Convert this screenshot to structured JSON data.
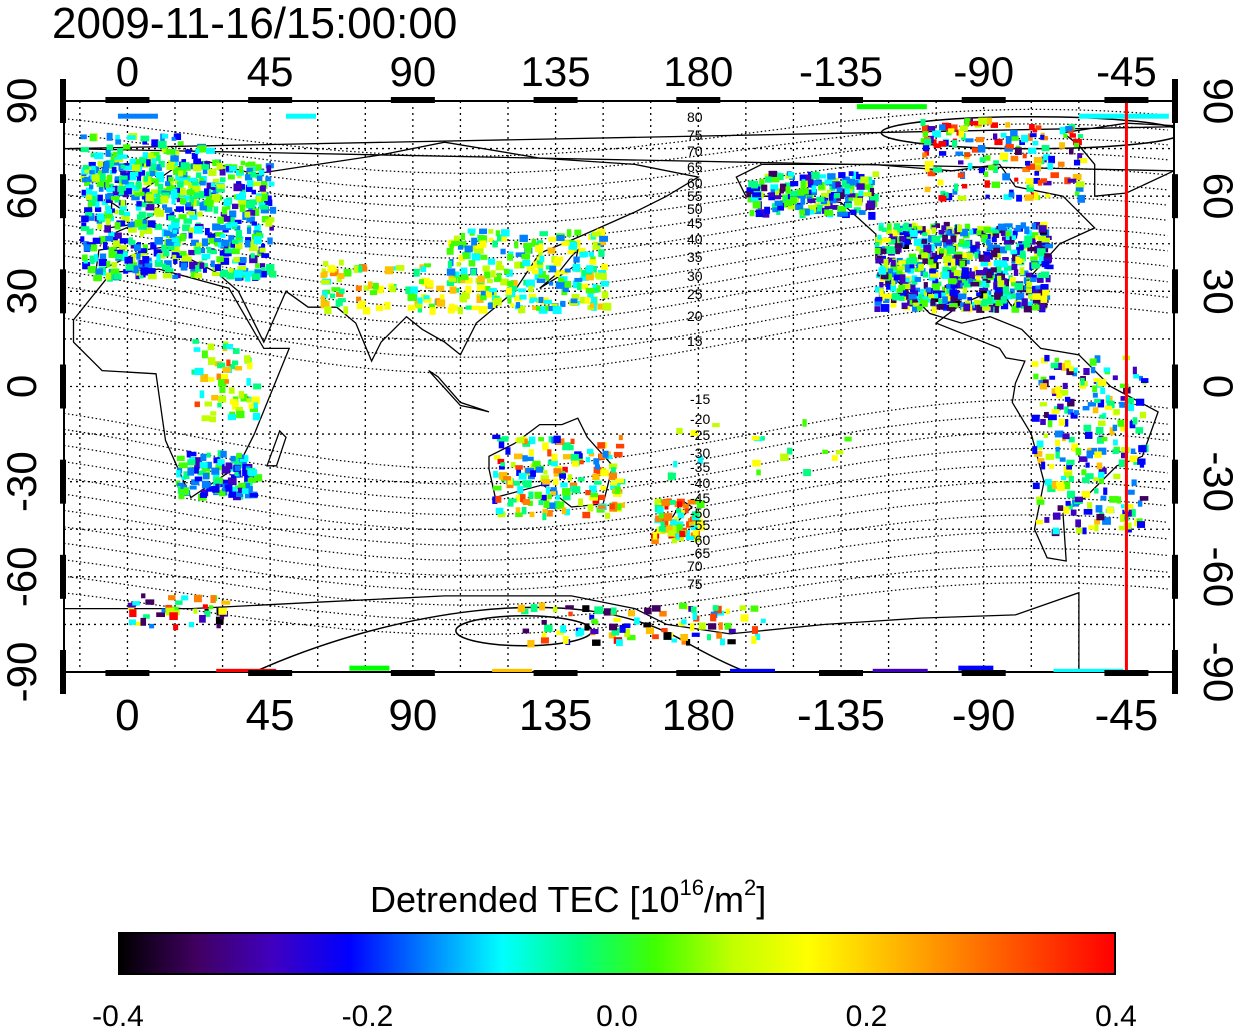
{
  "title": "2009-11-16/15:00:00",
  "map": {
    "lon_ticks_top": [
      "0",
      "45",
      "90",
      "135",
      "180",
      "-135",
      "-90",
      "-45"
    ],
    "lon_ticks_bottom": [
      "0",
      "45",
      "90",
      "135",
      "180",
      "-135",
      "-90",
      "-45"
    ],
    "lat_ticks_left": [
      "90",
      "60",
      "30",
      "0",
      "-30",
      "-60",
      "-90"
    ],
    "lat_ticks_right": [
      "90",
      "60",
      "30",
      "0",
      "-30",
      "-60",
      "-90"
    ],
    "lon_tick_values": [
      0,
      45,
      90,
      135,
      180,
      225,
      270,
      315
    ],
    "lat_tick_values": [
      90,
      60,
      30,
      0,
      -30,
      -60,
      -90
    ],
    "lon_range": [
      -20,
      330
    ],
    "lat_range": [
      -90,
      90
    ],
    "terminator_longitude": -45,
    "terminator_color": "#ff0000",
    "contour_labels_north": [
      "80",
      "75",
      "70",
      "65",
      "60",
      "55",
      "50",
      "45",
      "40",
      "35",
      "30",
      "25",
      "20",
      "15"
    ],
    "contour_labels_south": [
      "-15",
      "-20",
      "-25",
      "-30",
      "-35",
      "-40",
      "-45",
      "-50",
      "-55",
      "-60",
      "-65",
      "70",
      "75"
    ]
  },
  "colorbar": {
    "title_main": "Detrended TEC  [10",
    "title_sup1": "16",
    "title_mid": "/m",
    "title_sup2": "2",
    "title_end": "]",
    "min": -0.4,
    "max": 0.4,
    "tick_labels": [
      "-0.4",
      "-0.2",
      "0.0",
      "0.2",
      "0.4"
    ],
    "tick_values": [
      -0.4,
      -0.2,
      0.0,
      0.2,
      0.4
    ],
    "colors": [
      "#000000",
      "#400060",
      "#4000c0",
      "#0000ff",
      "#0080ff",
      "#00ffff",
      "#00ff80",
      "#40ff00",
      "#c0ff00",
      "#ffff00",
      "#ffc000",
      "#ff8000",
      "#ff4000",
      "#ff0000"
    ]
  }
}
